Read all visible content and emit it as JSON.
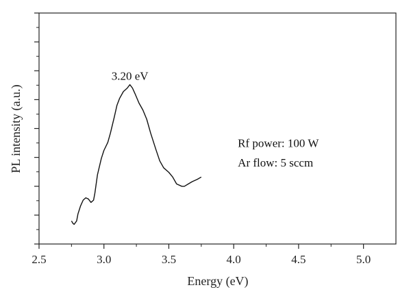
{
  "chart_data": {
    "type": "line",
    "xlabel": "Energy (eV)",
    "ylabel": "PL intensity (a.u.)",
    "xlim": [
      2.5,
      5.25
    ],
    "x_ticks": [
      2.5,
      3.0,
      3.5,
      4.0,
      4.5,
      5.0
    ],
    "x_tick_labels": [
      "2.5",
      "3.0",
      "3.5",
      "4.0",
      "4.5",
      "5.0"
    ],
    "ylim": [
      0,
      100
    ],
    "y_major_ticks": [
      0,
      12.5,
      25,
      37.5,
      50,
      62.5,
      75,
      87.5,
      100
    ],
    "y_tick_labels": [],
    "grid": false,
    "series": [
      {
        "x": [
          2.75,
          2.76,
          2.77,
          2.79,
          2.8,
          2.82,
          2.84,
          2.86,
          2.88,
          2.9,
          2.92,
          2.93,
          2.95,
          2.98,
          3.0,
          3.03,
          3.05,
          3.08,
          3.1,
          3.12,
          3.15,
          3.18,
          3.2,
          3.22,
          3.24,
          3.27,
          3.3,
          3.33,
          3.36,
          3.4,
          3.43,
          3.46,
          3.5,
          3.53,
          3.56,
          3.6,
          3.62,
          3.65,
          3.68,
          3.72,
          3.75
        ],
        "y": [
          10,
          9,
          8.5,
          10,
          13,
          16.5,
          19,
          20,
          19.5,
          18,
          19,
          22,
          30,
          37,
          40.5,
          44,
          48,
          55,
          60,
          63,
          66,
          67.5,
          69,
          67.5,
          65,
          61,
          58,
          54,
          48,
          41,
          36,
          33,
          31,
          29,
          26,
          25,
          25,
          26,
          27,
          28,
          29
        ]
      }
    ],
    "annotations": [
      {
        "text": "3.20 eV",
        "x": 3.2,
        "y": 71
      },
      {
        "text": "Rf power: 100 W",
        "x": 4.0,
        "y": 42
      },
      {
        "text": "Ar flow: 5 sccm",
        "x": 4.0,
        "y": 33.5
      }
    ]
  }
}
